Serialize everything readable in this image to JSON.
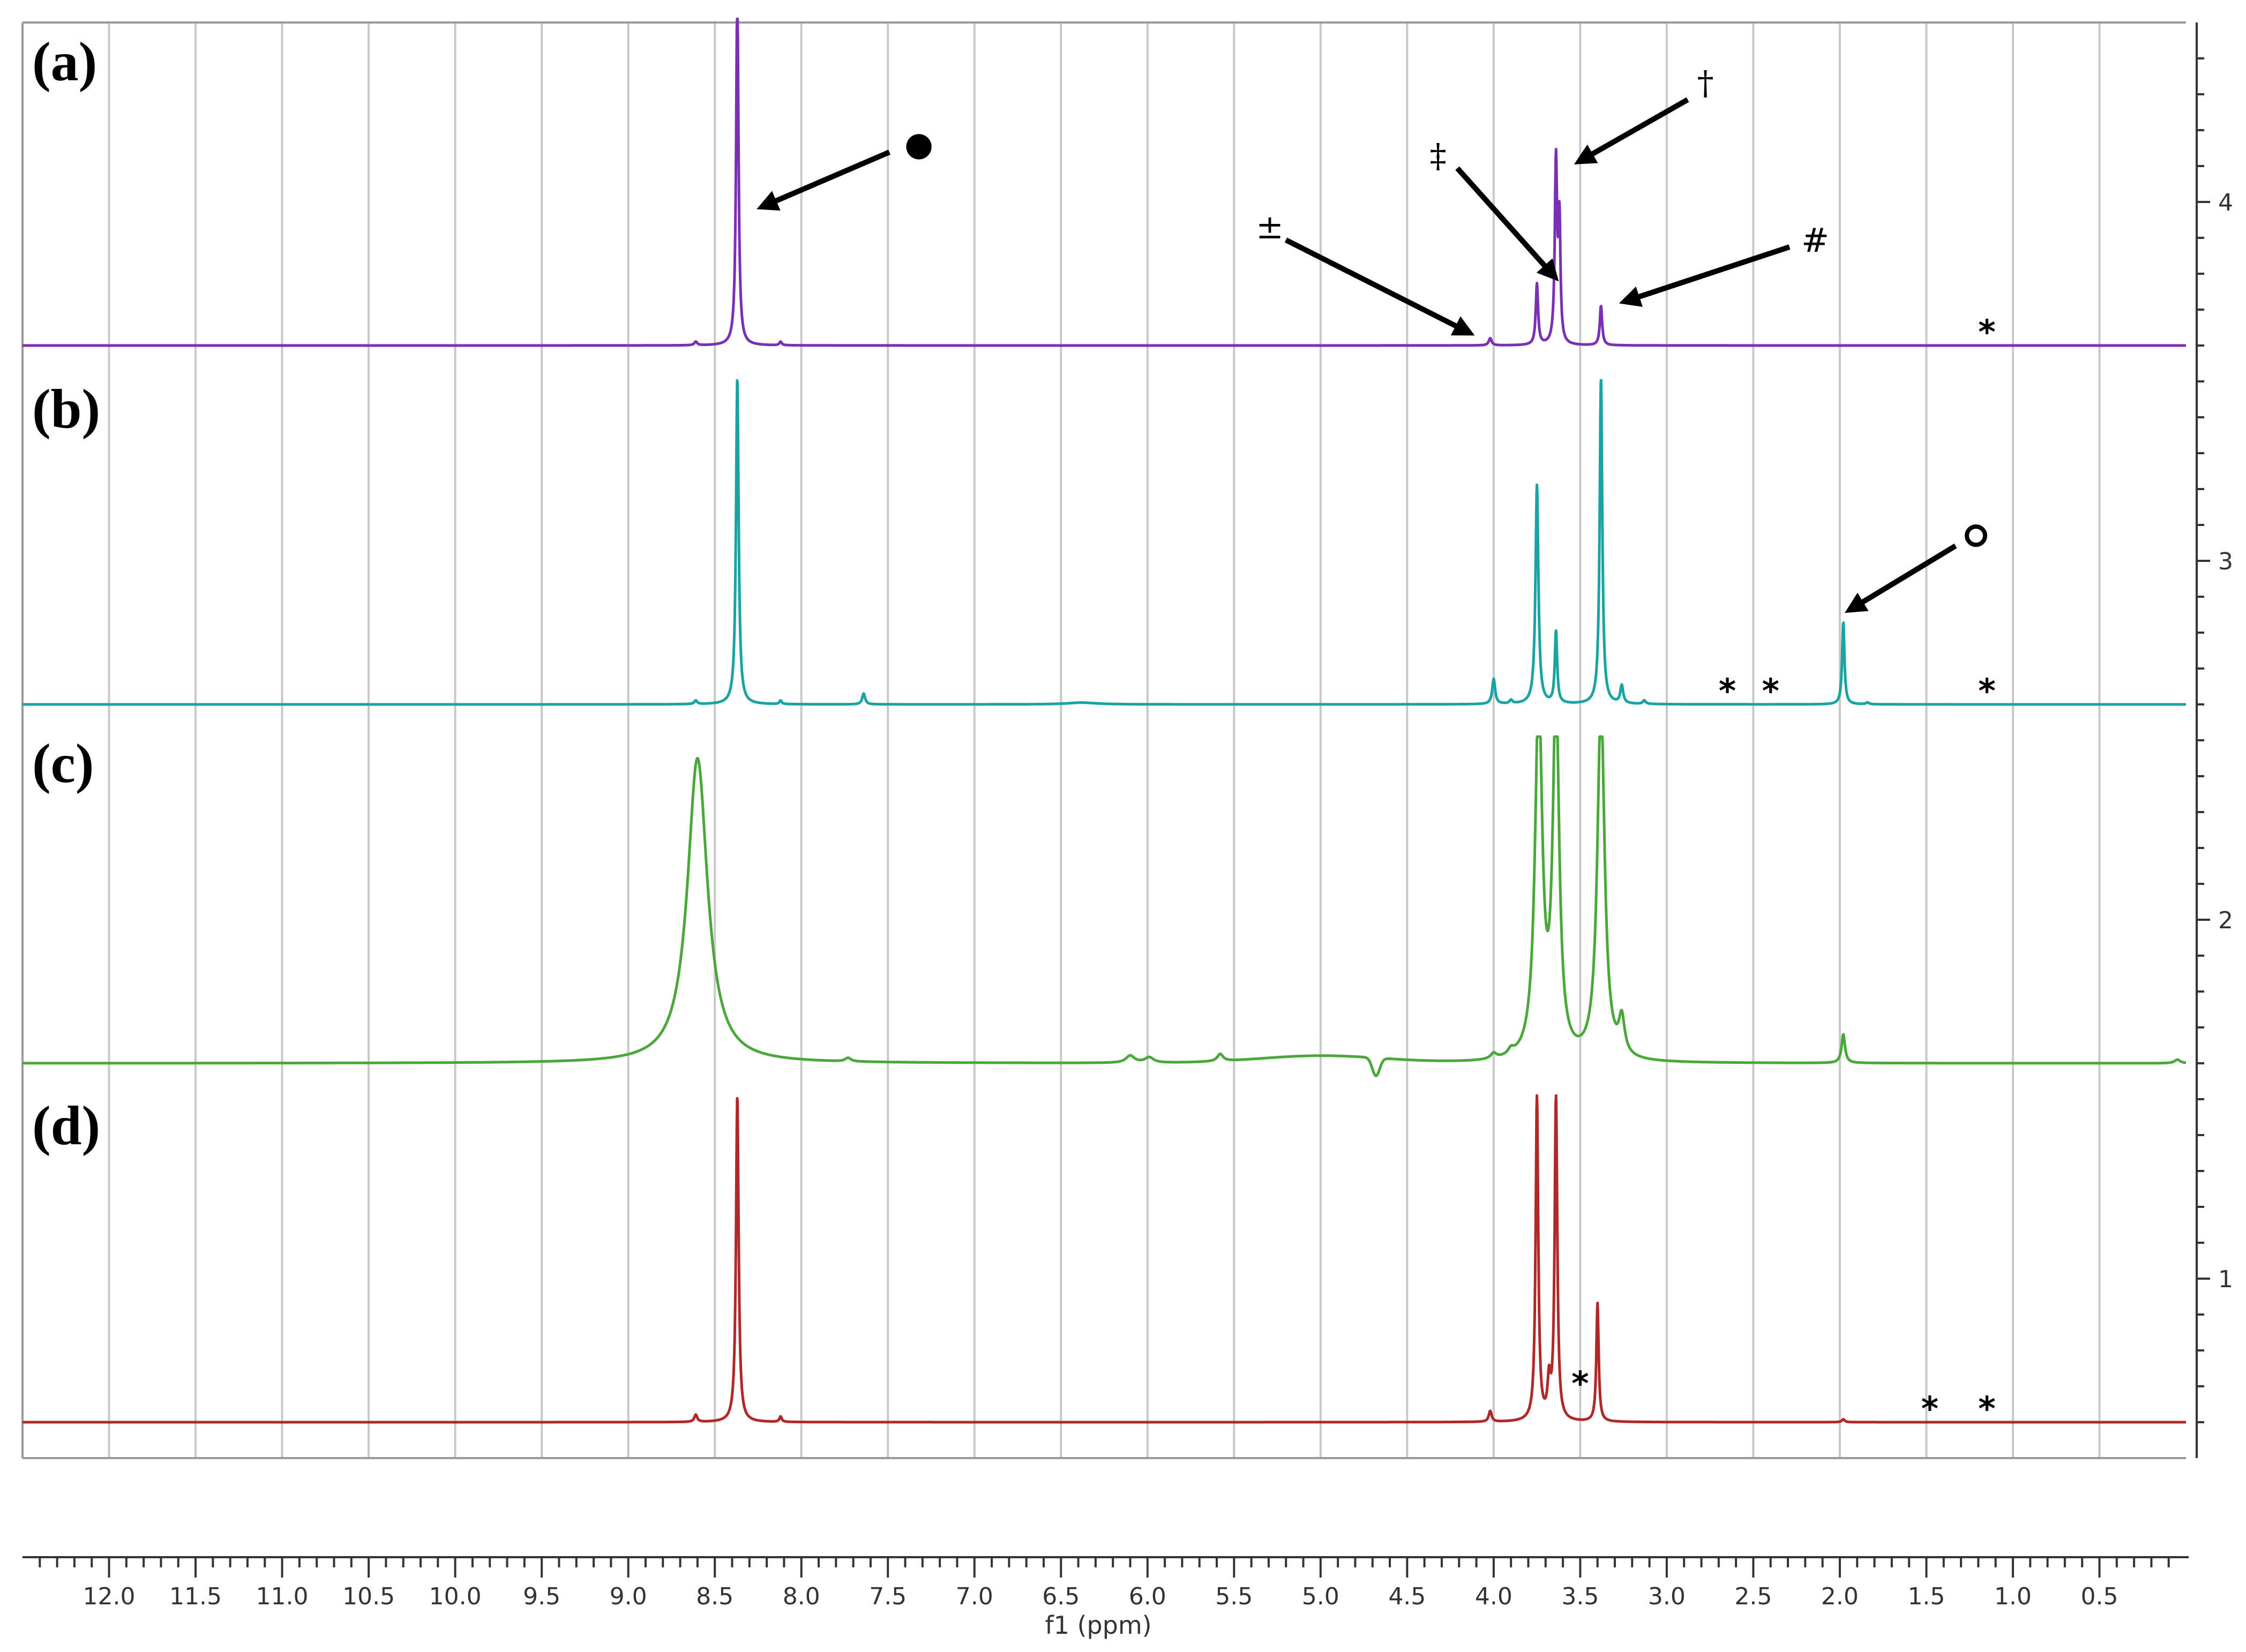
{
  "chart_data": {
    "type": "line",
    "xlabel": "f1 (ppm)",
    "xlim": [
      12.5,
      0.0
    ],
    "x_ticks": [
      "12.0",
      "11.5",
      "11.0",
      "10.5",
      "10.0",
      "9.5",
      "9.0",
      "8.5",
      "8.0",
      "7.5",
      "7.0",
      "6.5",
      "6.0",
      "5.5",
      "5.0",
      "4.5",
      "4.0",
      "3.5",
      "3.0",
      "2.5",
      "2.0",
      "1.5",
      "1.0",
      "0.5"
    ],
    "y_ticks": [
      "4",
      "3",
      "2",
      "1"
    ],
    "ylim": [
      0.5,
      4.5
    ],
    "grid": true,
    "series": [
      {
        "label": "(a)",
        "color": "#7a2fb5",
        "baseline": 3.6,
        "peaks": [
          {
            "x": 8.61,
            "h": 0.01,
            "w": 0.01
          },
          {
            "x": 8.37,
            "h": 1.0,
            "w": 0.008
          },
          {
            "x": 8.12,
            "h": 0.01,
            "w": 0.008
          },
          {
            "x": 4.02,
            "h": 0.02,
            "w": 0.01
          },
          {
            "x": 3.75,
            "h": 0.17,
            "w": 0.008
          },
          {
            "x": 3.64,
            "h": 0.51,
            "w": 0.008
          },
          {
            "x": 3.62,
            "h": 0.33,
            "w": 0.007
          },
          {
            "x": 3.38,
            "h": 0.11,
            "w": 0.008
          }
        ]
      },
      {
        "label": "(b)",
        "color": "#1aa3a3",
        "baseline": 2.6,
        "peaks": [
          {
            "x": 8.61,
            "h": 0.01,
            "w": 0.01
          },
          {
            "x": 8.37,
            "h": 0.91,
            "w": 0.009
          },
          {
            "x": 8.12,
            "h": 0.01,
            "w": 0.008
          },
          {
            "x": 7.64,
            "h": 0.03,
            "w": 0.01
          },
          {
            "x": 6.38,
            "h": 0.005,
            "w": 0.1
          },
          {
            "x": 4.0,
            "h": 0.07,
            "w": 0.01
          },
          {
            "x": 3.9,
            "h": 0.01,
            "w": 0.01
          },
          {
            "x": 3.75,
            "h": 0.61,
            "w": 0.01
          },
          {
            "x": 3.64,
            "h": 0.2,
            "w": 0.008
          },
          {
            "x": 3.38,
            "h": 0.91,
            "w": 0.009
          },
          {
            "x": 3.26,
            "h": 0.05,
            "w": 0.01
          },
          {
            "x": 3.13,
            "h": 0.01,
            "w": 0.01
          },
          {
            "x": 1.98,
            "h": 0.23,
            "w": 0.008
          },
          {
            "x": 1.84,
            "h": 0.005,
            "w": 0.01
          }
        ]
      },
      {
        "label": "(c)",
        "color": "#4aa83a",
        "baseline": 1.6,
        "peaks": [
          {
            "x": 8.6,
            "h": 0.85,
            "w": 0.07
          },
          {
            "x": 7.73,
            "h": 0.01,
            "w": 0.02
          },
          {
            "x": 6.1,
            "h": 0.02,
            "w": 0.03
          },
          {
            "x": 5.99,
            "h": 0.015,
            "w": 0.03
          },
          {
            "x": 5.58,
            "h": 0.02,
            "w": 0.02
          },
          {
            "x": 4.0,
            "h": 0.015,
            "w": 0.02
          },
          {
            "x": 3.9,
            "h": 0.015,
            "w": 0.02
          },
          {
            "x": 3.74,
            "h": 1.0,
            "w": 0.025
          },
          {
            "x": 3.64,
            "h": 1.0,
            "w": 0.022
          },
          {
            "x": 3.38,
            "h": 1.0,
            "w": 0.025
          },
          {
            "x": 3.26,
            "h": 0.1,
            "w": 0.02
          },
          {
            "x": 1.98,
            "h": 0.08,
            "w": 0.012
          },
          {
            "x": 0.05,
            "h": 0.01,
            "w": 0.02
          }
        ]
      },
      {
        "label": "(d)",
        "color": "#b02828",
        "baseline": 0.6,
        "peaks": [
          {
            "x": 8.61,
            "h": 0.02,
            "w": 0.01
          },
          {
            "x": 8.37,
            "h": 0.91,
            "w": 0.009
          },
          {
            "x": 8.12,
            "h": 0.015,
            "w": 0.008
          },
          {
            "x": 4.02,
            "h": 0.03,
            "w": 0.01
          },
          {
            "x": 3.75,
            "h": 0.91,
            "w": 0.009
          },
          {
            "x": 3.68,
            "h": 0.1,
            "w": 0.01
          },
          {
            "x": 3.64,
            "h": 0.91,
            "w": 0.009
          },
          {
            "x": 3.4,
            "h": 0.33,
            "w": 0.008
          },
          {
            "x": 1.98,
            "h": 0.008,
            "w": 0.01
          }
        ]
      }
    ],
    "annotations": [
      {
        "text": "●",
        "panel": "(a)",
        "arrow_to_ppm": 8.3
      },
      {
        "text": "±",
        "panel": "(a)",
        "arrow_to_ppm": 4.1
      },
      {
        "text": "‡",
        "panel": "(a)",
        "arrow_to_ppm": 3.82
      },
      {
        "text": "†",
        "panel": "(a)",
        "arrow_to_ppm": 3.6
      },
      {
        "text": "#",
        "panel": "(a)",
        "arrow_to_ppm": 3.33
      },
      {
        "text": "o",
        "panel": "(b)",
        "arrow_to_ppm": 1.96
      },
      {
        "text": "*",
        "panel": "(a)",
        "ppm": 1.15
      },
      {
        "text": "*",
        "panel": "(b)",
        "ppm": 2.65
      },
      {
        "text": "*",
        "panel": "(b)",
        "ppm": 2.4
      },
      {
        "text": "*",
        "panel": "(b)",
        "ppm": 1.15
      },
      {
        "text": "*",
        "panel": "(d)",
        "ppm": 3.5
      },
      {
        "text": "*",
        "panel": "(d)",
        "ppm": 1.48
      },
      {
        "text": "*",
        "panel": "(d)",
        "ppm": 1.15
      }
    ]
  }
}
